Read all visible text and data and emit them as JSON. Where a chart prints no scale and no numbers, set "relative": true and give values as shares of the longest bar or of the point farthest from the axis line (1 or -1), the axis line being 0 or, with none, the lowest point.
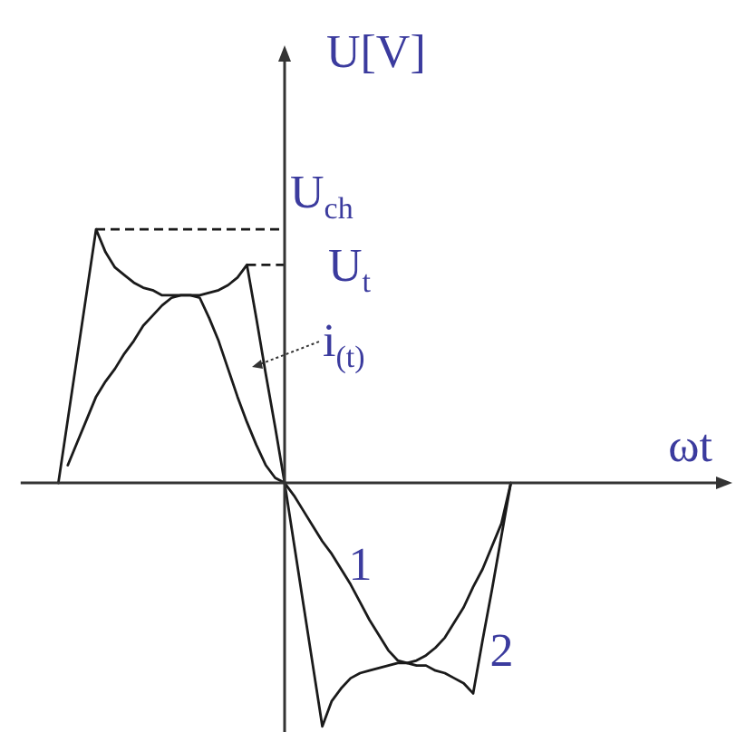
{
  "chart_data": {
    "type": "line",
    "relative": true,
    "xlabel": "ωt",
    "ylabel": "U[V]",
    "categories": [
      null,
      null,
      null,
      null,
      null,
      null,
      null,
      null,
      null,
      null,
      null,
      null,
      null,
      null,
      null,
      null,
      null,
      null,
      null,
      null,
      null,
      null,
      null,
      null,
      null,
      null,
      null,
      null,
      null,
      null,
      null,
      null,
      null,
      null,
      null,
      null,
      null,
      null,
      null,
      null,
      null,
      null,
      null,
      null,
      null,
      null,
      null,
      null,
      null,
      null,
      null,
      null,
      null,
      null,
      null,
      null,
      null,
      null,
      null,
      null,
      null,
      null,
      null,
      null,
      null,
      null,
      null,
      null,
      null,
      null,
      null,
      null,
      null,
      null,
      null,
      null
    ],
    "series": [
      {
        "name": "1",
        "color": "#1a1a1a",
        "values": [
          null,
          null,
          null,
          null,
          null,
          0.07,
          0.16,
          0.25,
          0.34,
          0.4,
          0.45,
          0.51,
          0.56,
          0.62,
          0.66,
          0.7,
          0.73,
          0.74,
          0.74,
          0.73,
          0.65,
          0.56,
          0.45,
          0.34,
          0.24,
          0.15,
          0.07,
          0.02,
          0,
          -0.05,
          -0.11,
          -0.17,
          -0.23,
          -0.28,
          -0.34,
          -0.4,
          -0.47,
          -0.54,
          -0.6,
          -0.66,
          -0.7,
          -0.71,
          -0.7,
          -0.68,
          -0.65,
          -0.61,
          -0.55,
          -0.49,
          -0.41,
          -0.34,
          -0.25,
          -0.16,
          0,
          null,
          null,
          null,
          null,
          null,
          null,
          null,
          null,
          null,
          null,
          null,
          null,
          null,
          null,
          null,
          null,
          null,
          null,
          null,
          null,
          null,
          null,
          null
        ]
      },
      {
        "name": "2",
        "color": "#1a1a1a",
        "values": [
          null,
          null,
          null,
          null,
          0,
          0.25,
          0.5,
          0.75,
          1,
          0.91,
          0.85,
          0.82,
          0.79,
          0.77,
          0.76,
          0.74,
          0.74,
          0.74,
          0.74,
          0.74,
          0.75,
          0.76,
          0.78,
          0.81,
          0.86,
          0.65,
          0.43,
          0.22,
          0,
          -0.24,
          -0.48,
          -0.72,
          -0.96,
          -0.86,
          -0.81,
          -0.77,
          -0.75,
          -0.74,
          -0.73,
          -0.72,
          -0.71,
          -0.71,
          -0.72,
          -0.72,
          -0.74,
          -0.75,
          -0.77,
          -0.79,
          -0.83,
          -0.62,
          -0.42,
          -0.21,
          0,
          null,
          null,
          null,
          null,
          null,
          null,
          null,
          null,
          null,
          null,
          null,
          null,
          null,
          null,
          null,
          null,
          null,
          null,
          null,
          null,
          null,
          null,
          null
        ]
      }
    ],
    "ref_lines": [
      {
        "axis": "y",
        "value": 1,
        "label": "U$_{ch}$",
        "line_style": "dashed",
        "color": "#1a1a1a"
      },
      {
        "axis": "y",
        "value": 0.86,
        "label": "U$_{t}$",
        "line_style": "dashed",
        "color": "#1a1a1a"
      }
    ],
    "annotations": [
      "i$_{(t)}$"
    ]
  }
}
